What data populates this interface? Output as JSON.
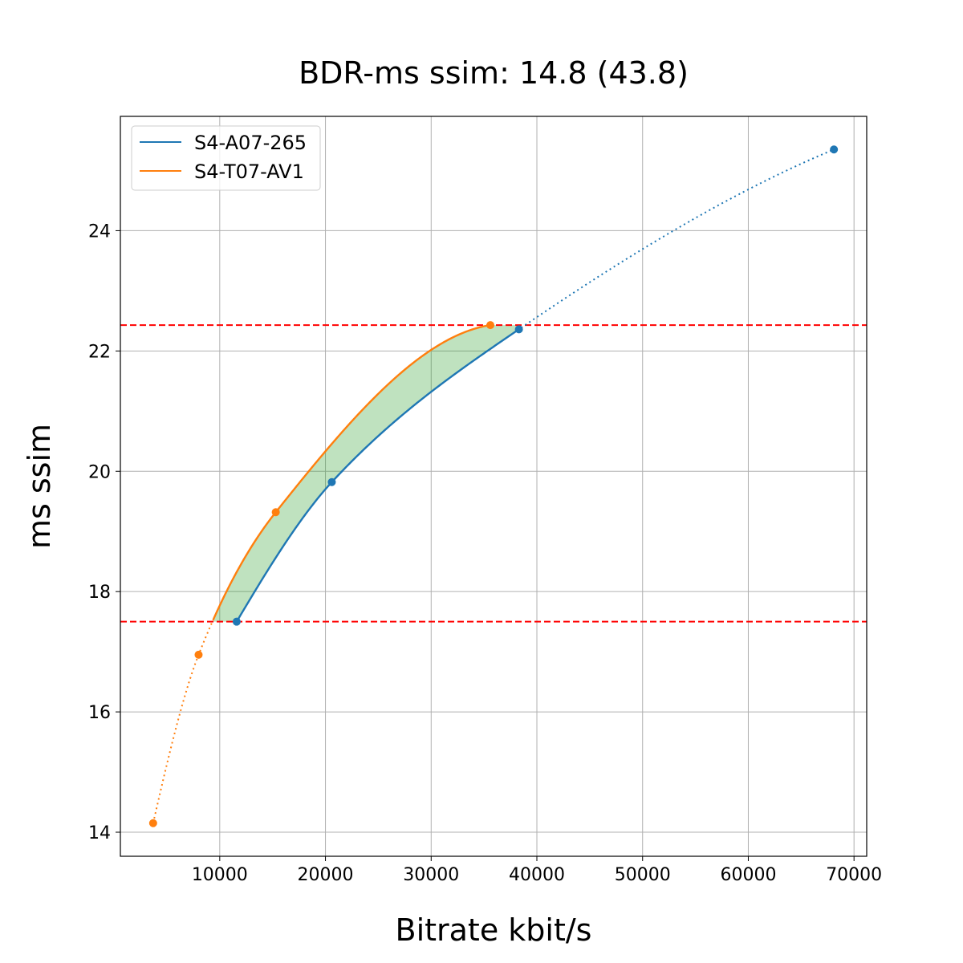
{
  "chart_data": {
    "type": "line",
    "title": "BDR-ms ssim: 14.8 (43.8)",
    "xlabel": "Bitrate kbit/s",
    "ylabel": "ms ssim",
    "xlim": [
      600,
      71200
    ],
    "ylim": [
      13.6,
      25.9
    ],
    "xticks": [
      10000,
      20000,
      30000,
      40000,
      50000,
      60000,
      70000
    ],
    "yticks": [
      14,
      16,
      18,
      20,
      22,
      24
    ],
    "grid": true,
    "legend_position": "top-left",
    "reference_lines": [
      17.5,
      22.43
    ],
    "reference_line_color": "#ff0000",
    "fill_color": "#2ca02c",
    "series": [
      {
        "name": "S4-A07-265",
        "color": "#1f77b4",
        "points": [
          {
            "x": 11600,
            "y": 17.5
          },
          {
            "x": 20600,
            "y": 19.82
          },
          {
            "x": 38300,
            "y": 22.36
          },
          {
            "x": 68100,
            "y": 25.35
          }
        ],
        "solid_range": [
          11600,
          38300
        ]
      },
      {
        "name": "S4-T07-AV1",
        "color": "#ff7f0e",
        "points": [
          {
            "x": 3700,
            "y": 14.15
          },
          {
            "x": 8000,
            "y": 16.95
          },
          {
            "x": 15300,
            "y": 19.32
          },
          {
            "x": 35600,
            "y": 22.43
          }
        ],
        "solid_range": [
          9400,
          35600
        ]
      }
    ]
  }
}
